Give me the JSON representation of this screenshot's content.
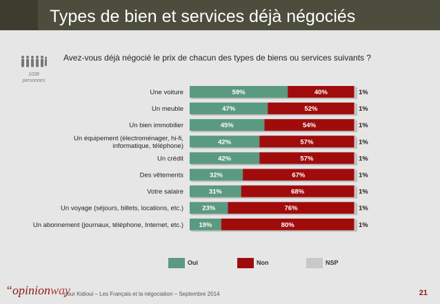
{
  "title": "Types de bien et services déjà négociés",
  "question": "Avez-vous déjà négocié le prix de chacun des types de biens ou services suivants ?",
  "respondents": [
    "1038",
    "personnes"
  ],
  "legend": [
    {
      "label": "Oui",
      "color": "#5a9a80"
    },
    {
      "label": "Non",
      "color": "#a00c0c"
    },
    {
      "label": "NSP",
      "color": "#c8c8c8"
    }
  ],
  "footer": {
    "logo_open": "“opinion",
    "logo_way": "way",
    "text": "pour Kidioui – Les Français et la négociation – Septembre 2014",
    "page": "21"
  },
  "chart_data": {
    "type": "bar",
    "stacked": true,
    "orientation": "horizontal",
    "categories": [
      [
        "Une voiture"
      ],
      [
        "Un meuble"
      ],
      [
        "Un bien immobilier"
      ],
      [
        "Un équipement (électroménager, hi-fi,",
        "informatique, téléphone)"
      ],
      [
        "Un crédit"
      ],
      [
        "Des vêtements"
      ],
      [
        "Votre salaire"
      ],
      [
        "Un voyage (séjours, billets, locations, etc.)"
      ],
      [
        "Un abonnement (journaux, téléphone, Internet, etc.)"
      ]
    ],
    "series": [
      {
        "name": "Oui",
        "color": "#5a9a80",
        "values": [
          59,
          47,
          45,
          42,
          42,
          32,
          31,
          23,
          19
        ]
      },
      {
        "name": "Non",
        "color": "#a00c0c",
        "values": [
          40,
          52,
          54,
          57,
          57,
          67,
          68,
          76,
          80
        ]
      },
      {
        "name": "NSP",
        "color": "#c8c8c8",
        "values": [
          1,
          1,
          1,
          1,
          1,
          1,
          1,
          1,
          1
        ]
      }
    ],
    "unit": "%",
    "xlim": [
      0,
      100
    ],
    "legend_position": "bottom"
  }
}
